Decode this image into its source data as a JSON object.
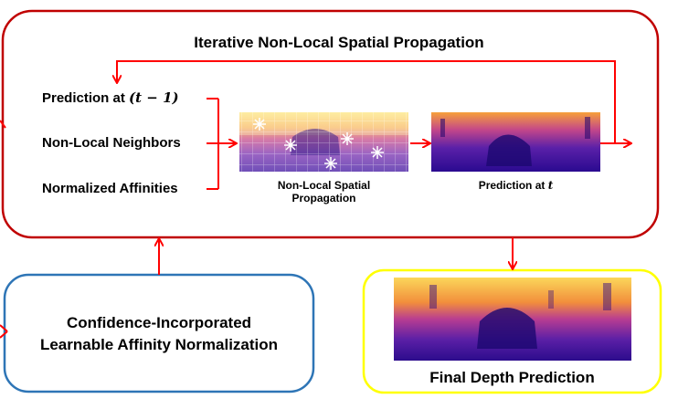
{
  "title": "Iterative Non-Local Spatial Propagation",
  "inputs": {
    "prediction_prev_prefix": "Prediction at",
    "prediction_prev_math": "(t − 1)",
    "non_local_neighbors": "Non-Local Neighbors",
    "normalized_affinities": "Normalized Affinities"
  },
  "captions": {
    "propagation_line1": "Non-Local Spatial",
    "propagation_line2": "Propagation",
    "prediction_t_prefix": "Prediction at",
    "prediction_t_math": "t"
  },
  "confidence_box": {
    "line1": "Confidence-Incorporated",
    "line2": "Learnable Affinity Normalization"
  },
  "final_label": "Final Depth Prediction",
  "colors": {
    "outer_border": "#c00000",
    "confidence_border": "#2e75b6",
    "final_border": "#ffff00",
    "arrow": "#ff0000"
  }
}
